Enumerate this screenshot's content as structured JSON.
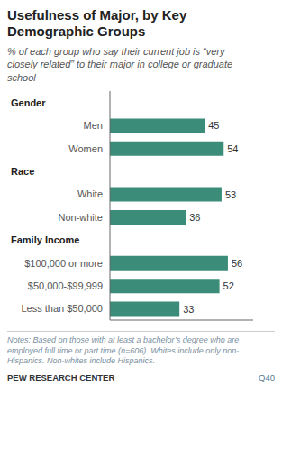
{
  "chart_data": {
    "type": "bar",
    "orientation": "horizontal",
    "title": "Usefulness of Major, by Key\nDemographic Groups",
    "subtitle": "% of each group who say their current job is “very\nclosely ​related” to their major in college or graduate\nschool",
    "categories": [
      "Men",
      "Women",
      "White",
      "Non-white",
      "$100,000 or more",
      "$50,000-$99,999",
      "Less than $50,000"
    ],
    "values": [
      45,
      54,
      53,
      36,
      56,
      52,
      33
    ],
    "color": "#3b8c78",
    "groups": [
      {
        "label": "Gender",
        "categories": [
          "Men",
          "Women"
        ]
      },
      {
        "label": "Race",
        "categories": [
          "White",
          "Non-white"
        ]
      },
      {
        "label": "Family Income",
        "categories": [
          "$100,000 or more",
          "$50,000-$99,999",
          "Less than $50,000"
        ]
      }
    ],
    "xlim": [
      0,
      68
    ],
    "data_labels": true,
    "tick_labels": "y",
    "grid": false,
    "notes": "Notes: Based on those with at least a bachelor’s degree who are employed full time or part time (n=606). Whites include only non-Hispanics. Non-whites include Hispanics.",
    "source": "PEW RESEARCH CENTER",
    "annotations": [
      "Q40"
    ]
  }
}
